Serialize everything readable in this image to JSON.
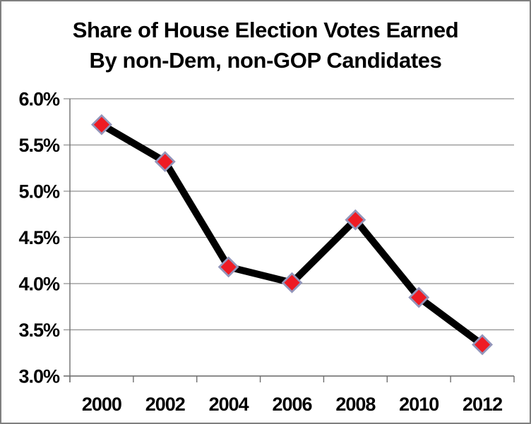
{
  "frame": {
    "border_color": "#7f7f7f",
    "background": "#ffffff"
  },
  "chart_data": {
    "type": "line",
    "title": "Share of House Election Votes Earned By non-Dem, non-GOP Candidates",
    "title_lines": [
      "Share of House Election Votes Earned",
      "By non-Dem, non-GOP Candidates"
    ],
    "categories": [
      "2000",
      "2002",
      "2004",
      "2006",
      "2008",
      "2010",
      "2012"
    ],
    "series": [
      {
        "name": "share-of-votes",
        "values": [
          5.72,
          5.32,
          4.18,
          4.01,
          4.69,
          3.85,
          3.34
        ]
      }
    ],
    "xlabel": "",
    "ylabel": "",
    "ylim": [
      3.0,
      6.0
    ],
    "y_tick_step": 0.5,
    "y_ticks": [
      {
        "value": 6.0,
        "label": "6.0%"
      },
      {
        "value": 5.5,
        "label": "5.5%"
      },
      {
        "value": 5.0,
        "label": "5.0%"
      },
      {
        "value": 4.5,
        "label": "4.5%"
      },
      {
        "value": 4.0,
        "label": "4.0%"
      },
      {
        "value": 3.5,
        "label": "3.5%"
      },
      {
        "value": 3.0,
        "label": "3.0%"
      }
    ],
    "grid": true,
    "legend": "none",
    "marker_shape": "diamond",
    "colors": {
      "line": "#000000",
      "marker_fill": "#ee1b24",
      "marker_stroke": "#9396bb",
      "grid": "#8f8f8f",
      "axis": "#6e6e6e",
      "text": "#000000"
    }
  }
}
